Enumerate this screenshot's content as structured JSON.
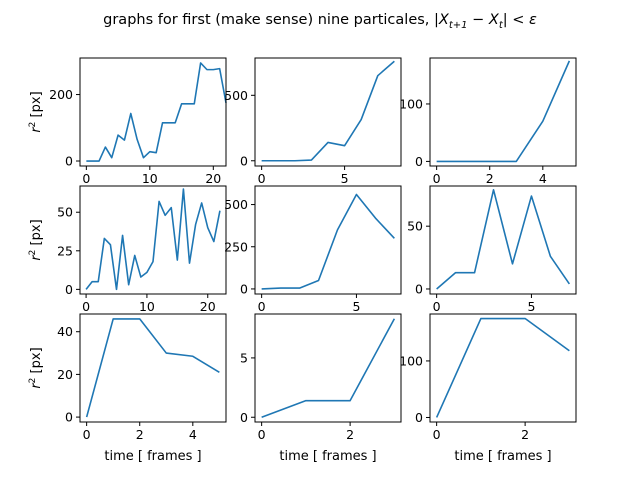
{
  "figure": {
    "title_prefix": "graphs for first (make sense) nine particales, ",
    "title_math": "|X",
    "title_sub1": "t+1",
    "title_mid": " − X",
    "title_sub2": "t",
    "title_end": "| < ε"
  },
  "colors": {
    "line": "#1f77b4",
    "frame": "#000000",
    "background": "#ffffff"
  },
  "chart_data": [
    {
      "type": "line",
      "xlim": [
        -1,
        22
      ],
      "ylim": [
        -15,
        310
      ],
      "xticks": [
        0,
        10,
        20
      ],
      "yticks": [
        0,
        200
      ],
      "ylabel": "r",
      "ylabel_sup": "2",
      "ylabel_unit": " [px]",
      "xlabel": "",
      "x": [
        0,
        1,
        2,
        3,
        4,
        5,
        6,
        7,
        8,
        9,
        10,
        11,
        12,
        13,
        14,
        15,
        16,
        17,
        18,
        19,
        20,
        21,
        22
      ],
      "values": [
        0,
        0,
        0,
        42,
        10,
        78,
        63,
        143,
        65,
        10,
        28,
        25,
        115,
        115,
        115,
        172,
        172,
        172,
        295,
        275,
        275,
        278,
        175
      ]
    },
    {
      "type": "line",
      "xlim": [
        -0.4,
        8.4
      ],
      "ylim": [
        -40,
        785
      ],
      "xticks": [
        0,
        5
      ],
      "yticks": [
        0,
        500
      ],
      "ylabel": "",
      "xlabel": "",
      "x": [
        0,
        1,
        2,
        3,
        4,
        5,
        6,
        7,
        8
      ],
      "values": [
        0,
        0,
        0,
        5,
        140,
        115,
        315,
        650,
        760
      ]
    },
    {
      "type": "line",
      "xlim": [
        -0.25,
        5.25
      ],
      "ylim": [
        -8,
        180
      ],
      "xticks": [
        0,
        2,
        4
      ],
      "yticks": [
        0,
        100
      ],
      "ylabel": "",
      "xlabel": "",
      "x": [
        0,
        1,
        2,
        3,
        4,
        5
      ],
      "values": [
        0,
        0,
        0,
        0,
        70,
        175
      ]
    },
    {
      "type": "line",
      "xlim": [
        -1,
        23
      ],
      "ylim": [
        -3,
        67
      ],
      "xticks": [
        0,
        10,
        20
      ],
      "yticks": [
        0,
        25,
        50
      ],
      "ylabel": "r",
      "ylabel_sup": "2",
      "ylabel_unit": " [px]",
      "xlabel": "",
      "x": [
        0,
        1,
        2,
        3,
        4,
        5,
        6,
        7,
        8,
        9,
        10,
        11,
        12,
        13,
        14,
        15,
        16,
        17,
        18,
        19,
        20,
        21,
        22
      ],
      "values": [
        0,
        5,
        5,
        33,
        29,
        0,
        35,
        3,
        22,
        8,
        11,
        18,
        57,
        48,
        53,
        19,
        65,
        17,
        42,
        56,
        40,
        31,
        51
      ]
    },
    {
      "type": "line",
      "xlim": [
        -0.35,
        7.35
      ],
      "ylim": [
        -30,
        610
      ],
      "xticks": [
        0,
        5
      ],
      "yticks": [
        0,
        250,
        500
      ],
      "ylabel": "",
      "xlabel": "",
      "x": [
        0,
        1,
        2,
        3,
        4,
        5,
        6,
        7
      ],
      "values": [
        0,
        5,
        5,
        50,
        350,
        560,
        420,
        300
      ]
    },
    {
      "type": "line",
      "xlim": [
        -0.35,
        7.35
      ],
      "ylim": [
        -4,
        82
      ],
      "xticks": [
        0,
        5
      ],
      "yticks": [
        0,
        50
      ],
      "ylabel": "",
      "xlabel": "",
      "x": [
        0,
        1,
        2,
        3,
        4,
        5,
        6,
        7
      ],
      "values": [
        0,
        13,
        13,
        79,
        20,
        74,
        26,
        4
      ]
    },
    {
      "type": "line",
      "xlim": [
        -0.25,
        5.25
      ],
      "ylim": [
        -2.3,
        48.3
      ],
      "xticks": [
        0,
        2,
        4
      ],
      "yticks": [
        0,
        20,
        40
      ],
      "ylabel": "r",
      "ylabel_sup": "2",
      "ylabel_unit": " [px]",
      "xlabel": "time [ frames ]",
      "x": [
        0,
        1,
        2,
        3,
        4,
        5
      ],
      "values": [
        0,
        46,
        46,
        30,
        28.5,
        21
      ]
    },
    {
      "type": "line",
      "xlim": [
        -0.15,
        3.15
      ],
      "ylim": [
        -0.4,
        8.7
      ],
      "xticks": [
        0,
        2
      ],
      "yticks": [
        0,
        5
      ],
      "ylabel": "",
      "xlabel": "time [ frames ]",
      "x": [
        0,
        1,
        2,
        3
      ],
      "values": [
        0,
        1.4,
        1.4,
        8.3
      ]
    },
    {
      "type": "line",
      "xlim": [
        -0.15,
        3.15
      ],
      "ylim": [
        -8,
        183
      ],
      "xticks": [
        0,
        2
      ],
      "yticks": [
        0,
        100
      ],
      "ylabel": "",
      "xlabel": "time [ frames ]",
      "x": [
        0,
        1,
        2,
        3
      ],
      "values": [
        0,
        175,
        175,
        118
      ]
    }
  ]
}
